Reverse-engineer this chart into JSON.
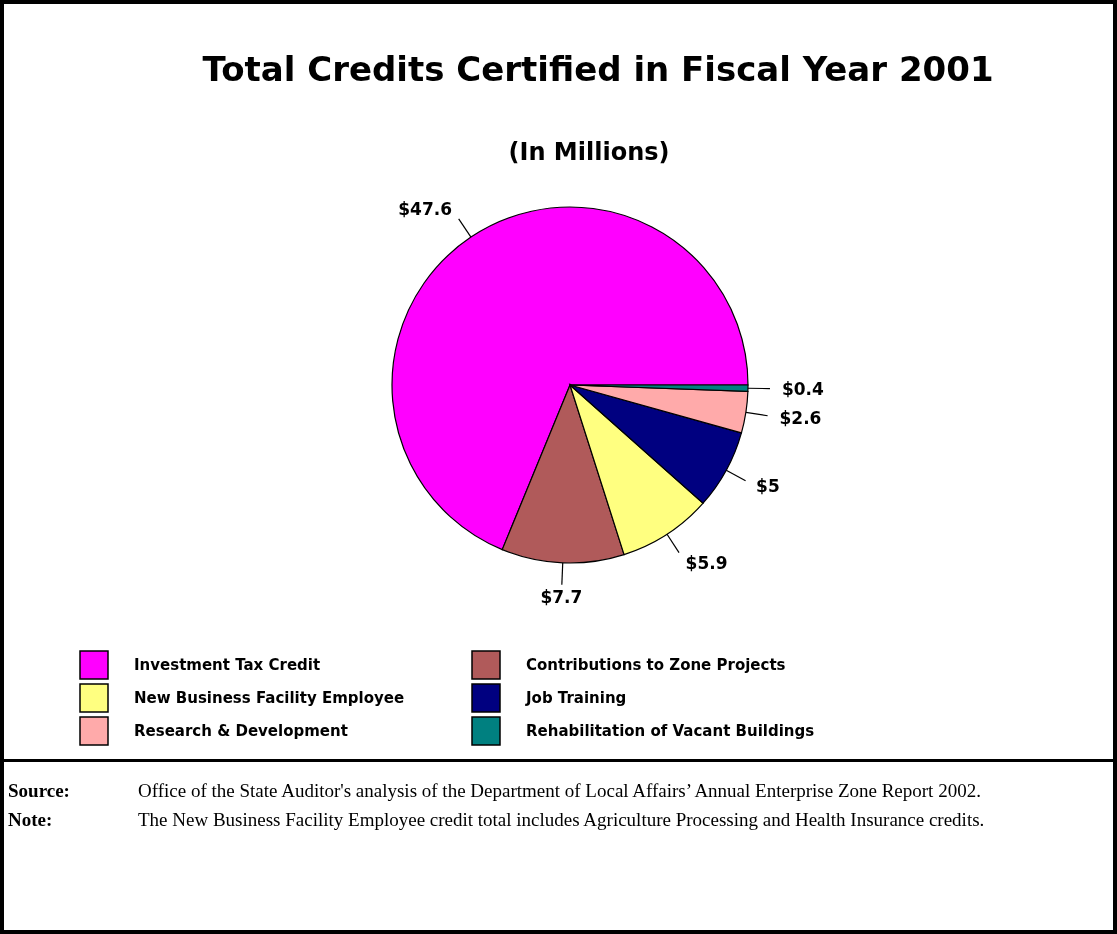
{
  "chart_data": {
    "type": "pie",
    "title": "Total Credits Certified in Fiscal Year 2001",
    "subtitle": "(In Millions)",
    "categories": [
      "Investment Tax Credit",
      "Contributions to Zone Projects",
      "New Business Facility Employee",
      "Job Training",
      "Research & Development",
      "Rehabilitation of Vacant Buildings"
    ],
    "values": [
      47.6,
      7.7,
      5.9,
      5,
      2.6,
      0.4
    ],
    "value_labels": [
      "$47.6",
      "$7.7",
      "$5.9",
      "$5",
      "$2.6",
      "$0.4"
    ],
    "colors": [
      "#ff00ff",
      "#b05a5a",
      "#ffff80",
      "#000080",
      "#ffaaaa",
      "#008080"
    ],
    "legend": "bottom",
    "annotations": [
      "Source: Office of the State Auditor's analysis of the Department of Local Affairs’ Annual Enterprise Zone Report 2002.",
      "Note: The New Business Facility Employee credit total includes Agriculture Processing and Health Insurance credits."
    ]
  }
}
